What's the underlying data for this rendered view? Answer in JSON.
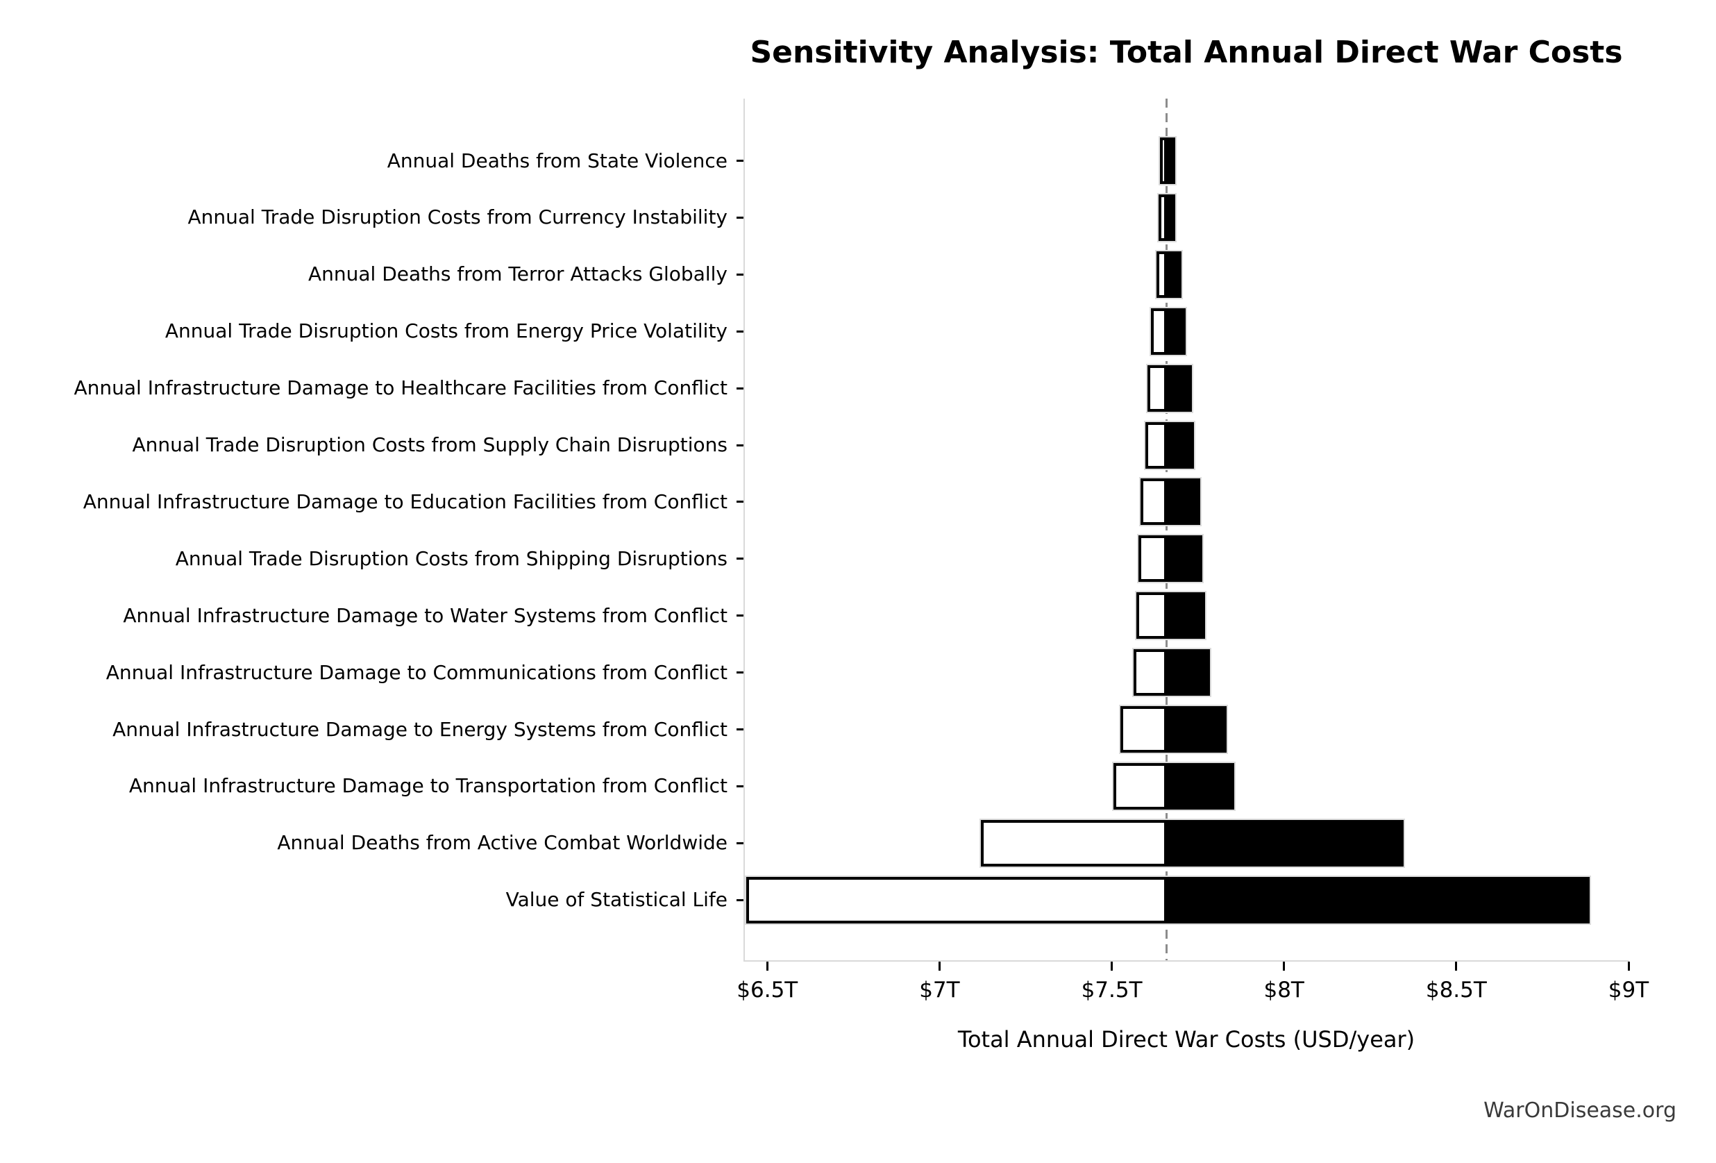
{
  "title": "Sensitivity Analysis: Total Annual Direct War Costs",
  "watermark": "WarOnDisease.org",
  "chart_data": {
    "type": "bar",
    "subtype": "tornado-sensitivity",
    "title": "Sensitivity Analysis: Total Annual Direct War Costs",
    "xlabel": "Total Annual Direct War Costs (USD/year)",
    "unit": "trillion USD per year",
    "baseline_value": 7.66,
    "xlim": [
      6.433,
      9.0
    ],
    "grid": false,
    "legend": "none",
    "colors": {
      "low_bar_fill": "#ffffff",
      "low_bar_edge": "#000000",
      "high_bar_fill": "#000000",
      "bar_outline": "#dcdcdc",
      "baseline_line": "#8c8c8c",
      "spine": "#d9d9d9",
      "text": "#000000",
      "watermark": "#3a3a3a"
    },
    "xticks": [
      {
        "value": 6.5,
        "label": "$6.5T"
      },
      {
        "value": 7.0,
        "label": "$7T"
      },
      {
        "value": 7.5,
        "label": "$7.5T"
      },
      {
        "value": 8.0,
        "label": "$8T"
      },
      {
        "value": 8.5,
        "label": "$8.5T"
      },
      {
        "value": 9.0,
        "label": "$9T"
      }
    ],
    "rows": [
      {
        "label": "Annual Deaths from State Violence",
        "low": 7.64,
        "high": 7.684
      },
      {
        "label": "Annual Trade Disruption Costs from Currency Instability",
        "low": 7.636,
        "high": 7.684
      },
      {
        "label": "Annual Deaths from Terror Attacks Globally",
        "low": 7.63,
        "high": 7.702
      },
      {
        "label": "Annual Trade Disruption Costs from Energy Price Volatility",
        "low": 7.614,
        "high": 7.715
      },
      {
        "label": "Annual Infrastructure Damage to Healthcare Facilities from Conflict",
        "low": 7.604,
        "high": 7.733
      },
      {
        "label": "Annual Trade Disruption Costs from Supply Chain Disruptions",
        "low": 7.598,
        "high": 7.739
      },
      {
        "label": "Annual Infrastructure Damage to Education Facilities from Conflict",
        "low": 7.584,
        "high": 7.757
      },
      {
        "label": "Annual Trade Disruption Costs from Shipping Disruptions",
        "low": 7.578,
        "high": 7.763
      },
      {
        "label": "Annual Infrastructure Damage to Water Systems from Conflict",
        "low": 7.572,
        "high": 7.771
      },
      {
        "label": "Annual Infrastructure Damage to Communications from Conflict",
        "low": 7.564,
        "high": 7.785
      },
      {
        "label": "Annual Infrastructure Damage to Energy Systems from Conflict",
        "low": 7.525,
        "high": 7.834
      },
      {
        "label": "Annual Infrastructure Damage to Transportation from Conflict",
        "low": 7.505,
        "high": 7.856
      },
      {
        "label": "Annual Deaths from Active Combat Worldwide",
        "low": 7.12,
        "high": 8.347
      },
      {
        "label": "Value of Statistical Life",
        "low": 6.44,
        "high": 8.887
      }
    ]
  }
}
